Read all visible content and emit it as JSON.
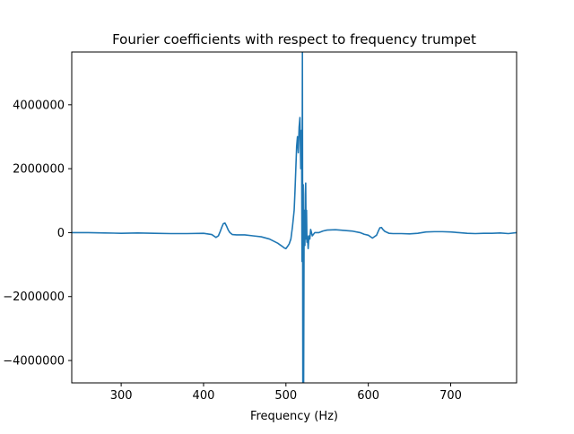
{
  "chart_data": {
    "type": "line",
    "title": "Fourier coefficients with respect to frequency trumpet",
    "xlabel": "Frequency (Hz)",
    "ylabel": "",
    "xlim": [
      240,
      780
    ],
    "ylim": [
      -4700000,
      5650000
    ],
    "xticks": [
      300,
      400,
      500,
      600,
      700
    ],
    "xtick_labels": [
      "300",
      "400",
      "500",
      "600",
      "700"
    ],
    "yticks": [
      -4000000,
      -2000000,
      0,
      2000000,
      4000000
    ],
    "ytick_labels": [
      "−4000000",
      "−2000000",
      "0",
      "2000000",
      "4000000"
    ],
    "grid": false,
    "legend": "none",
    "series": [
      {
        "color": "#1f77b4",
        "x": [
          240,
          260,
          280,
          300,
          320,
          340,
          360,
          380,
          400,
          410,
          415,
          418,
          420,
          422,
          424,
          426,
          428,
          430,
          432,
          435,
          440,
          450,
          460,
          470,
          480,
          490,
          495,
          498,
          500,
          502,
          504,
          506,
          508,
          510,
          511,
          512,
          513,
          514,
          515,
          516,
          517,
          518,
          519,
          519.5,
          520,
          520.5,
          521,
          521.5,
          522,
          522.5,
          523,
          523.5,
          524,
          524.5,
          525,
          525.5,
          526,
          527,
          528,
          529,
          530,
          532,
          535,
          540,
          545,
          550,
          560,
          570,
          580,
          590,
          595,
          600,
          605,
          610,
          612,
          614,
          616,
          618,
          620,
          625,
          630,
          640,
          650,
          660,
          670,
          680,
          690,
          700,
          710,
          720,
          730,
          740,
          750,
          760,
          770,
          780
        ],
        "y": [
          0,
          0,
          -10000,
          -20000,
          -10000,
          -20000,
          -30000,
          -30000,
          -20000,
          -60000,
          -150000,
          -100000,
          20000,
          160000,
          280000,
          300000,
          200000,
          80000,
          0,
          -60000,
          -70000,
          -70000,
          -100000,
          -130000,
          -200000,
          -330000,
          -420000,
          -480000,
          -500000,
          -430000,
          -350000,
          -200000,
          200000,
          700000,
          1300000,
          2000000,
          2700000,
          3000000,
          2500000,
          3300000,
          3600000,
          2000000,
          3200000,
          -900000,
          5650000,
          -4700000,
          1500000,
          -4700000,
          -300000,
          700000,
          -400000,
          1200000,
          1550000,
          -200000,
          700000,
          -300000,
          -100000,
          -500000,
          -100000,
          -200000,
          100000,
          -100000,
          0,
          0,
          50000,
          80000,
          90000,
          70000,
          50000,
          0,
          -50000,
          -80000,
          -170000,
          -80000,
          40000,
          150000,
          160000,
          90000,
          40000,
          -20000,
          -30000,
          -30000,
          -40000,
          -20000,
          20000,
          30000,
          30000,
          20000,
          0,
          -20000,
          -30000,
          -20000,
          -20000,
          -10000,
          -30000,
          0
        ]
      }
    ]
  }
}
